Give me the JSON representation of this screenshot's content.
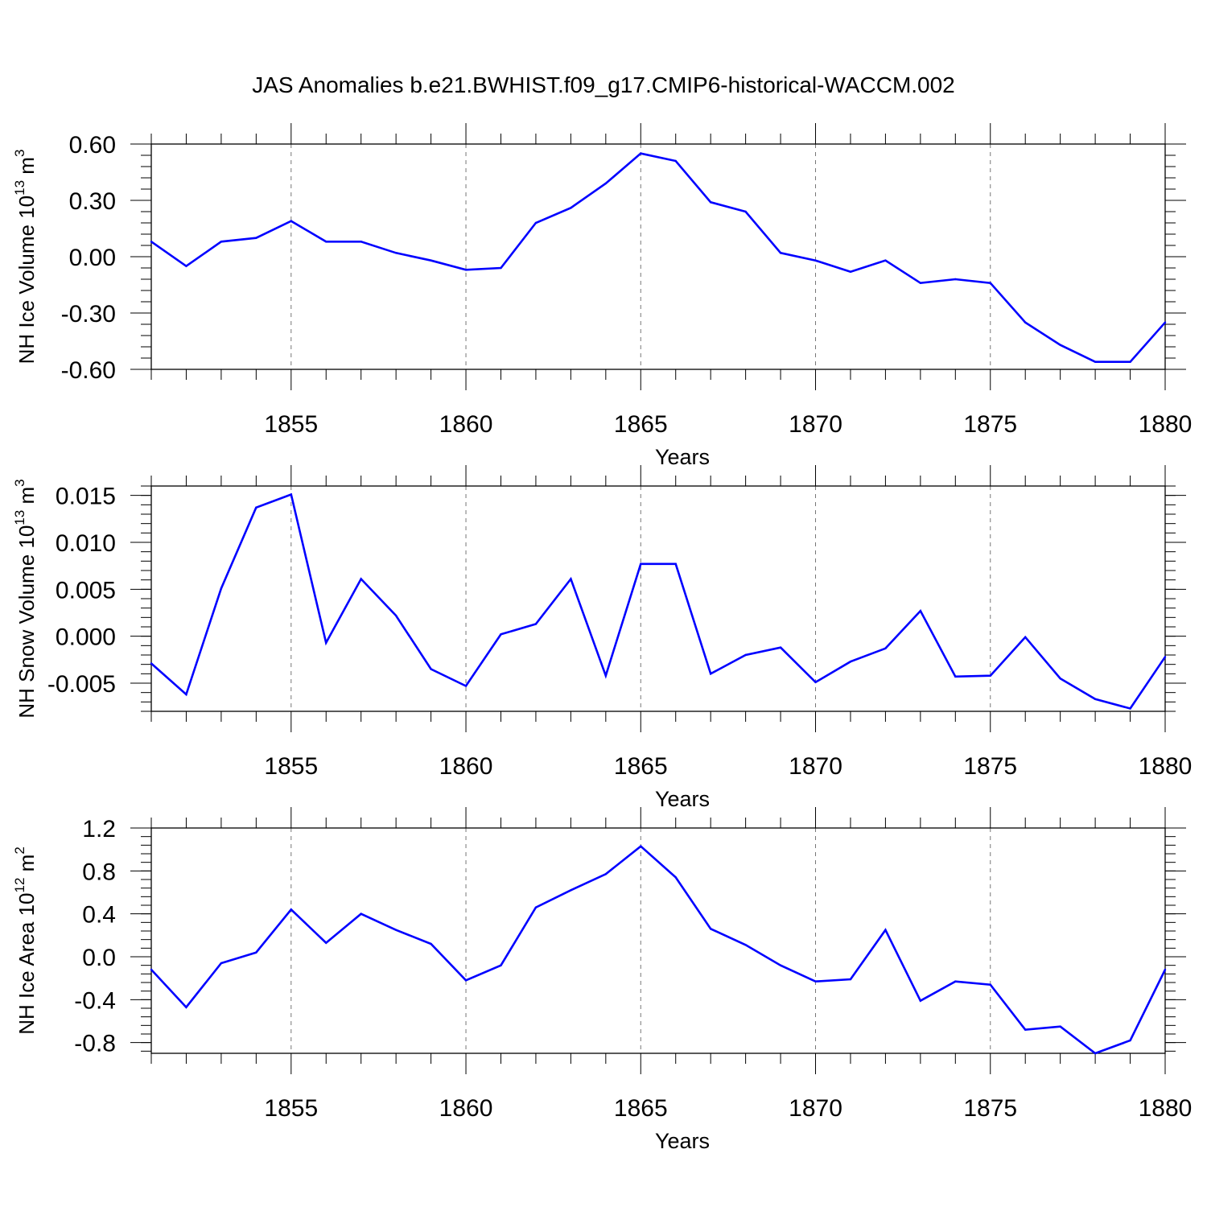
{
  "figure": {
    "title": "JAS Anomalies b.e21.BWHIST.f09_g17.CMIP6-historical-WACCM.002"
  },
  "chart_data": [
    {
      "type": "line",
      "id": "ice-volume",
      "ylabel_text": "NH Ice Volume 10",
      "ylabel_exp": "13",
      "ylabel_unit": " m",
      "ylabel_unit_exp": "3",
      "xlabel": "Years",
      "xlim": [
        1851,
        1880
      ],
      "ylim": [
        -0.6,
        0.6
      ],
      "yticks": [
        -0.6,
        -0.3,
        0.0,
        0.3,
        0.6
      ],
      "ytick_labels": [
        "-0.60",
        "-0.30",
        "0.00",
        "0.30",
        "0.60"
      ],
      "ytick_minor": 0.06,
      "xticks": [
        1855,
        1860,
        1865,
        1870,
        1875,
        1880
      ],
      "xtick_labels": [
        "1855",
        "1860",
        "1865",
        "1870",
        "1875",
        "1880"
      ],
      "grid_x": "dashed vertical at major x ticks",
      "series": [
        {
          "name": "NH Ice Volume",
          "color": "#0000ff",
          "x": [
            1851,
            1852,
            1853,
            1854,
            1855,
            1856,
            1857,
            1858,
            1859,
            1860,
            1861,
            1862,
            1863,
            1864,
            1865,
            1866,
            1867,
            1868,
            1869,
            1870,
            1871,
            1872,
            1873,
            1874,
            1875,
            1876,
            1877,
            1878,
            1879,
            1880
          ],
          "values": [
            0.08,
            -0.05,
            0.08,
            0.1,
            0.19,
            0.08,
            0.08,
            0.02,
            -0.02,
            -0.07,
            -0.06,
            0.18,
            0.26,
            0.39,
            0.55,
            0.51,
            0.29,
            0.24,
            0.02,
            -0.02,
            -0.08,
            -0.02,
            -0.14,
            -0.12,
            -0.14,
            -0.35,
            -0.47,
            -0.56,
            -0.56,
            -0.35
          ]
        }
      ]
    },
    {
      "type": "line",
      "id": "snow-volume",
      "ylabel_text": "NH Snow Volume 10",
      "ylabel_exp": "13",
      "ylabel_unit": " m",
      "ylabel_unit_exp": "3",
      "xlabel": "Years",
      "xlim": [
        1851,
        1880
      ],
      "ylim": [
        -0.008,
        0.016
      ],
      "yticks": [
        -0.005,
        0.0,
        0.005,
        0.01,
        0.015
      ],
      "ytick_labels": [
        "-0.005",
        "0.000",
        "0.005",
        "0.010",
        "0.015"
      ],
      "ytick_minor": 0.001,
      "xticks": [
        1855,
        1860,
        1865,
        1870,
        1875,
        1880
      ],
      "xtick_labels": [
        "1855",
        "1860",
        "1865",
        "1870",
        "1875",
        "1880"
      ],
      "grid_x": "dashed vertical at major x ticks",
      "series": [
        {
          "name": "NH Snow Volume",
          "color": "#0000ff",
          "x": [
            1851,
            1852,
            1853,
            1854,
            1855,
            1856,
            1857,
            1858,
            1859,
            1860,
            1861,
            1862,
            1863,
            1864,
            1865,
            1866,
            1867,
            1868,
            1869,
            1870,
            1871,
            1872,
            1873,
            1874,
            1875,
            1876,
            1877,
            1878,
            1879,
            1880
          ],
          "values": [
            -0.0029,
            -0.0062,
            0.0051,
            0.0137,
            0.0151,
            -0.0007,
            0.0061,
            0.0022,
            -0.0035,
            -0.0053,
            0.0002,
            0.0013,
            0.0061,
            -0.0042,
            0.0077,
            0.0077,
            -0.004,
            -0.002,
            -0.0012,
            -0.0049,
            -0.0027,
            -0.0013,
            0.0027,
            -0.0043,
            -0.0042,
            -0.0001,
            -0.0045,
            -0.0067,
            -0.0077,
            -0.0022
          ]
        }
      ]
    },
    {
      "type": "line",
      "id": "ice-area",
      "ylabel_text": "NH Ice Area 10",
      "ylabel_exp": "12",
      "ylabel_unit": " m",
      "ylabel_unit_exp": "2",
      "xlabel": "Years",
      "xlim": [
        1851,
        1880
      ],
      "ylim": [
        -0.9,
        1.2
      ],
      "yticks": [
        -0.8,
        -0.4,
        0.0,
        0.4,
        0.8,
        1.2
      ],
      "ytick_labels": [
        "-0.8",
        "-0.4",
        "0.0",
        "0.4",
        "0.8",
        "1.2"
      ],
      "ytick_minor": 0.08,
      "xticks": [
        1855,
        1860,
        1865,
        1870,
        1875,
        1880
      ],
      "xtick_labels": [
        "1855",
        "1860",
        "1865",
        "1870",
        "1875",
        "1880"
      ],
      "grid_x": "dashed vertical at major x ticks",
      "series": [
        {
          "name": "NH Ice Area",
          "color": "#0000ff",
          "x": [
            1851,
            1852,
            1853,
            1854,
            1855,
            1856,
            1857,
            1858,
            1859,
            1860,
            1861,
            1862,
            1863,
            1864,
            1865,
            1866,
            1867,
            1868,
            1869,
            1870,
            1871,
            1872,
            1873,
            1874,
            1875,
            1876,
            1877,
            1878,
            1879,
            1880
          ],
          "values": [
            -0.12,
            -0.47,
            -0.06,
            0.04,
            0.44,
            0.13,
            0.4,
            0.25,
            0.12,
            -0.22,
            -0.08,
            0.46,
            0.62,
            0.77,
            1.03,
            0.74,
            0.26,
            0.11,
            -0.08,
            -0.23,
            -0.21,
            0.25,
            -0.41,
            -0.23,
            -0.26,
            -0.68,
            -0.65,
            -0.9,
            -0.78,
            -0.12
          ]
        }
      ]
    }
  ]
}
